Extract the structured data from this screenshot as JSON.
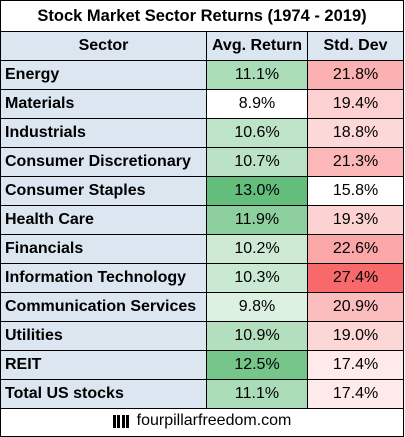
{
  "chart_data": {
    "type": "table",
    "title": "Stock Market Sector Returns (1974 - 2019)",
    "columns": [
      "Sector",
      "Avg. Return",
      "Std. Dev"
    ],
    "rows": [
      {
        "sector": "Energy",
        "avg_return": "11.1%",
        "std_dev": "21.8%",
        "avg_return_value": 11.1,
        "std_dev_value": 21.8
      },
      {
        "sector": "Materials",
        "avg_return": "8.9%",
        "std_dev": "19.4%",
        "avg_return_value": 8.9,
        "std_dev_value": 19.4
      },
      {
        "sector": "Industrials",
        "avg_return": "10.6%",
        "std_dev": "18.8%",
        "avg_return_value": 10.6,
        "std_dev_value": 18.8
      },
      {
        "sector": "Consumer Discretionary",
        "avg_return": "10.7%",
        "std_dev": "21.3%",
        "avg_return_value": 10.7,
        "std_dev_value": 21.3
      },
      {
        "sector": "Consumer Staples",
        "avg_return": "13.0%",
        "std_dev": "15.8%",
        "avg_return_value": 13.0,
        "std_dev_value": 15.8
      },
      {
        "sector": "Health Care",
        "avg_return": "11.9%",
        "std_dev": "19.3%",
        "avg_return_value": 11.9,
        "std_dev_value": 19.3
      },
      {
        "sector": "Financials",
        "avg_return": "10.2%",
        "std_dev": "22.6%",
        "avg_return_value": 10.2,
        "std_dev_value": 22.6
      },
      {
        "sector": "Information Technology",
        "avg_return": "10.3%",
        "std_dev": "27.4%",
        "avg_return_value": 10.3,
        "std_dev_value": 27.4
      },
      {
        "sector": "Communication Services",
        "avg_return": "9.8%",
        "std_dev": "20.9%",
        "avg_return_value": 9.8,
        "std_dev_value": 20.9
      },
      {
        "sector": "Utilities",
        "avg_return": "10.9%",
        "std_dev": "19.0%",
        "avg_return_value": 10.9,
        "std_dev_value": 19.0
      },
      {
        "sector": "REIT",
        "avg_return": "12.5%",
        "std_dev": "17.4%",
        "avg_return_value": 12.5,
        "std_dev_value": 17.4
      },
      {
        "sector": "Total US stocks",
        "avg_return": "11.1%",
        "std_dev": "17.4%",
        "avg_return_value": 11.1,
        "std_dev_value": 17.4
      }
    ],
    "return_scale": {
      "min": 8.9,
      "max": 13.0,
      "low_color": "#ffffff",
      "high_color": "#63be7b"
    },
    "std_dev_scale": {
      "min": 15.8,
      "max": 27.4,
      "low_color": "#ffffff",
      "high_color": "#f8696b"
    }
  },
  "footer": {
    "text": "fourpillarfreedom.com",
    "logo": "four-pillars-logo-icon"
  },
  "colors": {
    "header_fill": "#dce6f1",
    "border": "#000000"
  }
}
